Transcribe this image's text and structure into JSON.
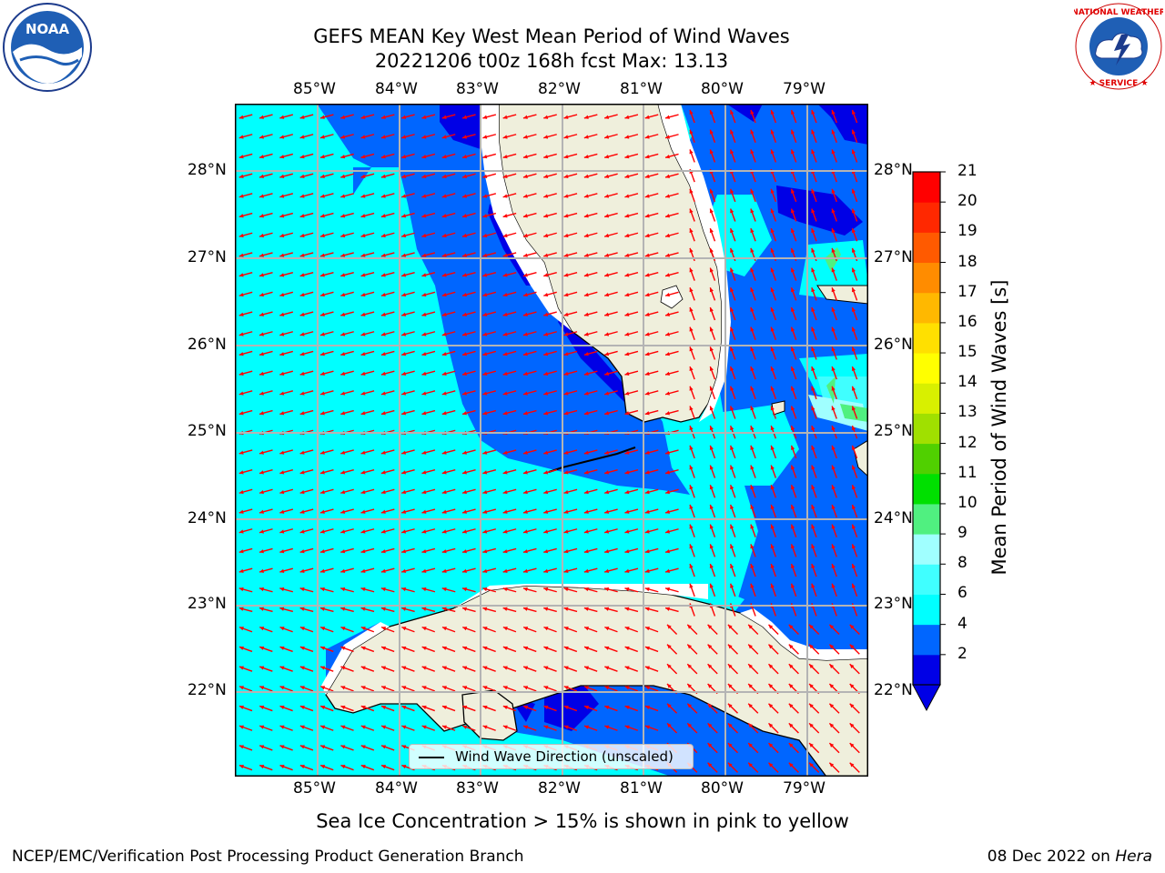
{
  "header": {
    "title_line1": "GEFS MEAN Key West Mean Period of Wind Waves",
    "title_line2": "20221206 t00z 168h fcst   Max: 13.13"
  },
  "map": {
    "lon_ticks": [
      "85°W",
      "84°W",
      "83°W",
      "82°W",
      "81°W",
      "80°W",
      "79°W"
    ],
    "lat_ticks": [
      "28°N",
      "27°N",
      "26°N",
      "25°N",
      "24°N",
      "23°N",
      "22°N"
    ],
    "land_color": "#efefdc",
    "ocean_colors": {
      "2-4": "#0066ff",
      "<2": "#0000e6",
      "4-6": "#00ffff"
    },
    "arrow_color": "#ff0000",
    "legend_label": "Wind Wave Direction (unscaled)"
  },
  "colorbar": {
    "title": "Mean Period of Wind Waves [s]",
    "labels": [
      "21",
      "20",
      "19",
      "18",
      "17",
      "16",
      "15",
      "14",
      "13",
      "12",
      "11",
      "10",
      "9",
      "8",
      "6",
      "4",
      "2"
    ],
    "colors": [
      "#0000e6",
      "#0066ff",
      "#00ffff",
      "#40ffff",
      "#a0ffff",
      "#50f080",
      "#00e000",
      "#50d000",
      "#a0e000",
      "#d8f000",
      "#ffff00",
      "#ffe000",
      "#ffb800",
      "#ff8c00",
      "#ff5a00",
      "#ff2800",
      "#ff0000"
    ]
  },
  "notes": {
    "sea_ice": "Sea Ice Concentration > 15% is shown in pink to yellow",
    "footer_left": "NCEP/EMC/Verification Post Processing Product Generation Branch",
    "footer_date": "08 Dec 2022 on ",
    "footer_machine": "Hera"
  },
  "logos": {
    "noaa_text": "NOAA",
    "nws_text": "NATIONAL WEATHER SERVICE"
  }
}
